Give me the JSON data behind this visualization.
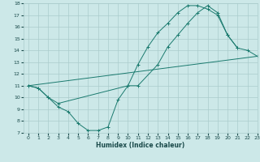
{
  "curve1_x": [
    0,
    1,
    2,
    3,
    4,
    5,
    6,
    7,
    8,
    9,
    10,
    11,
    12,
    13,
    14,
    15,
    16,
    17,
    18,
    19,
    20,
    21
  ],
  "curve1_y": [
    11.0,
    10.8,
    10.0,
    9.2,
    8.8,
    7.8,
    7.2,
    7.2,
    7.5,
    9.8,
    11.0,
    12.8,
    14.3,
    15.5,
    16.3,
    17.2,
    17.8,
    17.8,
    17.5,
    17.0,
    15.3,
    14.2
  ],
  "curve2_x": [
    0,
    1,
    2,
    3,
    10,
    11,
    13,
    14,
    15,
    16,
    17,
    18,
    19,
    20,
    21,
    22,
    23
  ],
  "curve2_y": [
    11.0,
    10.8,
    10.0,
    9.5,
    11.0,
    11.0,
    12.8,
    14.3,
    15.3,
    16.3,
    17.2,
    17.8,
    17.2,
    15.3,
    14.2,
    14.0,
    13.5
  ],
  "curve3_x": [
    0,
    23
  ],
  "curve3_y": [
    11.0,
    13.5
  ],
  "color": "#1a7a6e",
  "bg_color": "#cce8e8",
  "grid_color": "#aacccc",
  "xlabel": "Humidex (Indice chaleur)",
  "xlim": [
    -0.5,
    23
  ],
  "ylim": [
    7,
    18
  ],
  "xticks": [
    0,
    1,
    2,
    3,
    4,
    5,
    6,
    7,
    8,
    9,
    10,
    11,
    12,
    13,
    14,
    15,
    16,
    17,
    18,
    19,
    20,
    21,
    22,
    23
  ],
  "yticks": [
    7,
    8,
    9,
    10,
    11,
    12,
    13,
    14,
    15,
    16,
    17,
    18
  ],
  "xlabel_fontsize": 5.5,
  "tick_fontsize": 4.5,
  "linewidth": 0.7,
  "markersize": 2.5,
  "marker": "+"
}
